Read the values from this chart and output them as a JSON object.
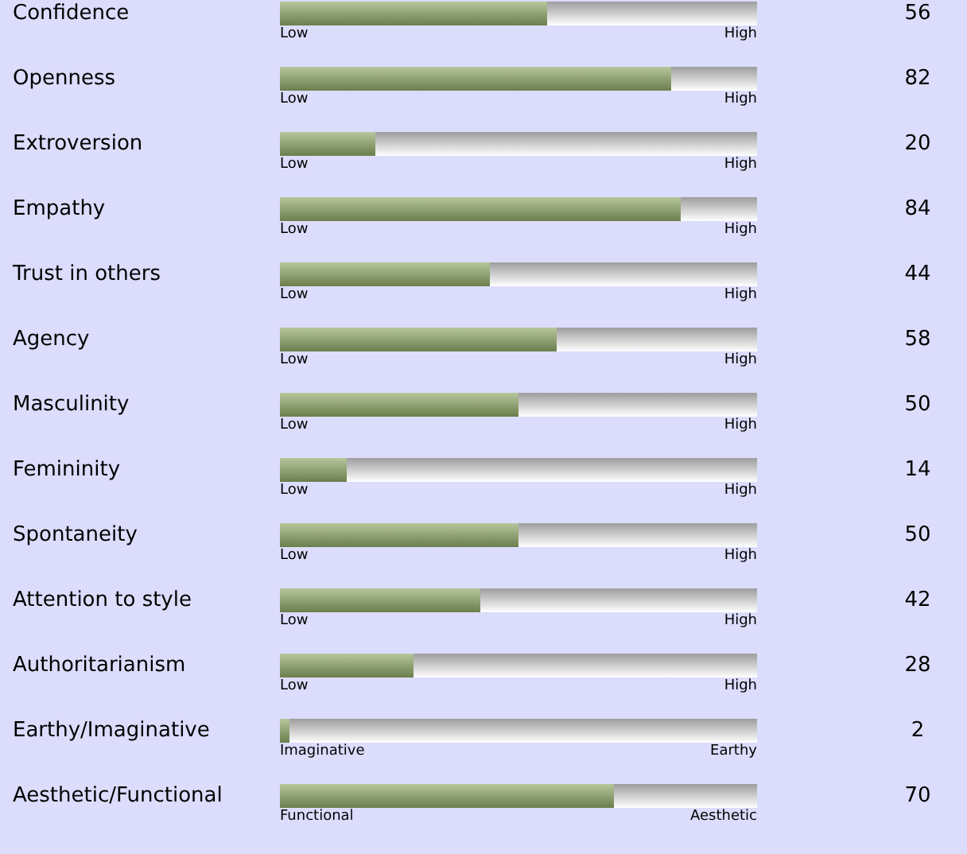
{
  "chart_data": {
    "type": "bar",
    "orientation": "horizontal",
    "stacked": true,
    "categories": [
      "Confidence",
      "Openness",
      "Extroversion",
      "Empathy",
      "Trust in others",
      "Agency",
      "Masculinity",
      "Femininity",
      "Spontaneity",
      "Attention to style",
      "Authoritarianism",
      "Earthy/Imaginative",
      "Aesthetic/Functional"
    ],
    "series": [
      {
        "color": "#8fa865",
        "values": [
          56,
          82,
          20,
          84,
          44,
          58,
          50,
          14,
          50,
          42,
          28,
          2,
          70
        ],
        "value_labels": [
          "56",
          "82",
          "20",
          "84",
          "44",
          "58",
          "50",
          "14",
          "50",
          "42",
          "28",
          "2",
          "70"
        ]
      },
      {
        "color": "#cecece",
        "values": [
          44,
          18,
          80,
          16,
          56,
          42,
          50,
          86,
          50,
          58,
          72,
          98,
          30
        ]
      }
    ],
    "xlim": [
      0,
      100
    ],
    "tick_labels": "y",
    "annotations": [
      "Low",
      "High",
      "Low",
      "High",
      "Low",
      "High",
      "Low",
      "High",
      "Low",
      "High",
      "Low",
      "High",
      "Low",
      "High",
      "Low",
      "High",
      "Low",
      "High",
      "Low",
      "High",
      "Low",
      "High",
      "Imaginative",
      "Earthy",
      "Functional",
      "Aesthetic"
    ]
  }
}
